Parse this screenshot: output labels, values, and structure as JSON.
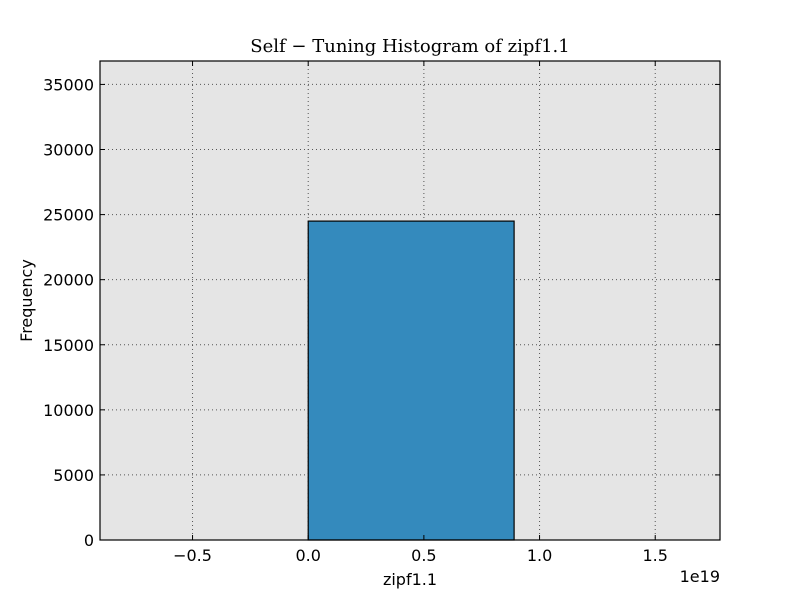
{
  "chart_data": {
    "type": "bar",
    "title": "Self − Tuning Histogram of zipf1.1",
    "xlabel": "zipf1.1",
    "ylabel": "Frequency",
    "x_offset_label": "1e19",
    "xlim": [
      -0.9,
      1.78
    ],
    "ylim": [
      0,
      36800
    ],
    "x_ticks": [
      -0.5,
      0.0,
      0.5,
      1.0,
      1.5
    ],
    "x_tick_labels": [
      "−0.5",
      "0.0",
      "0.5",
      "1.0",
      "1.5"
    ],
    "y_ticks": [
      0,
      5000,
      10000,
      15000,
      20000,
      25000,
      30000,
      35000
    ],
    "y_tick_labels": [
      "0",
      "5000",
      "10000",
      "15000",
      "20000",
      "25000",
      "30000",
      "35000"
    ],
    "bins": [
      {
        "x_start": 0.0,
        "x_end": 0.89,
        "count": 24500
      }
    ],
    "grid": true,
    "colors": {
      "plot_background": "#e5e5e5",
      "bar_fill": "#348abd",
      "bar_edge": "#000000",
      "grid": "#555555"
    }
  }
}
